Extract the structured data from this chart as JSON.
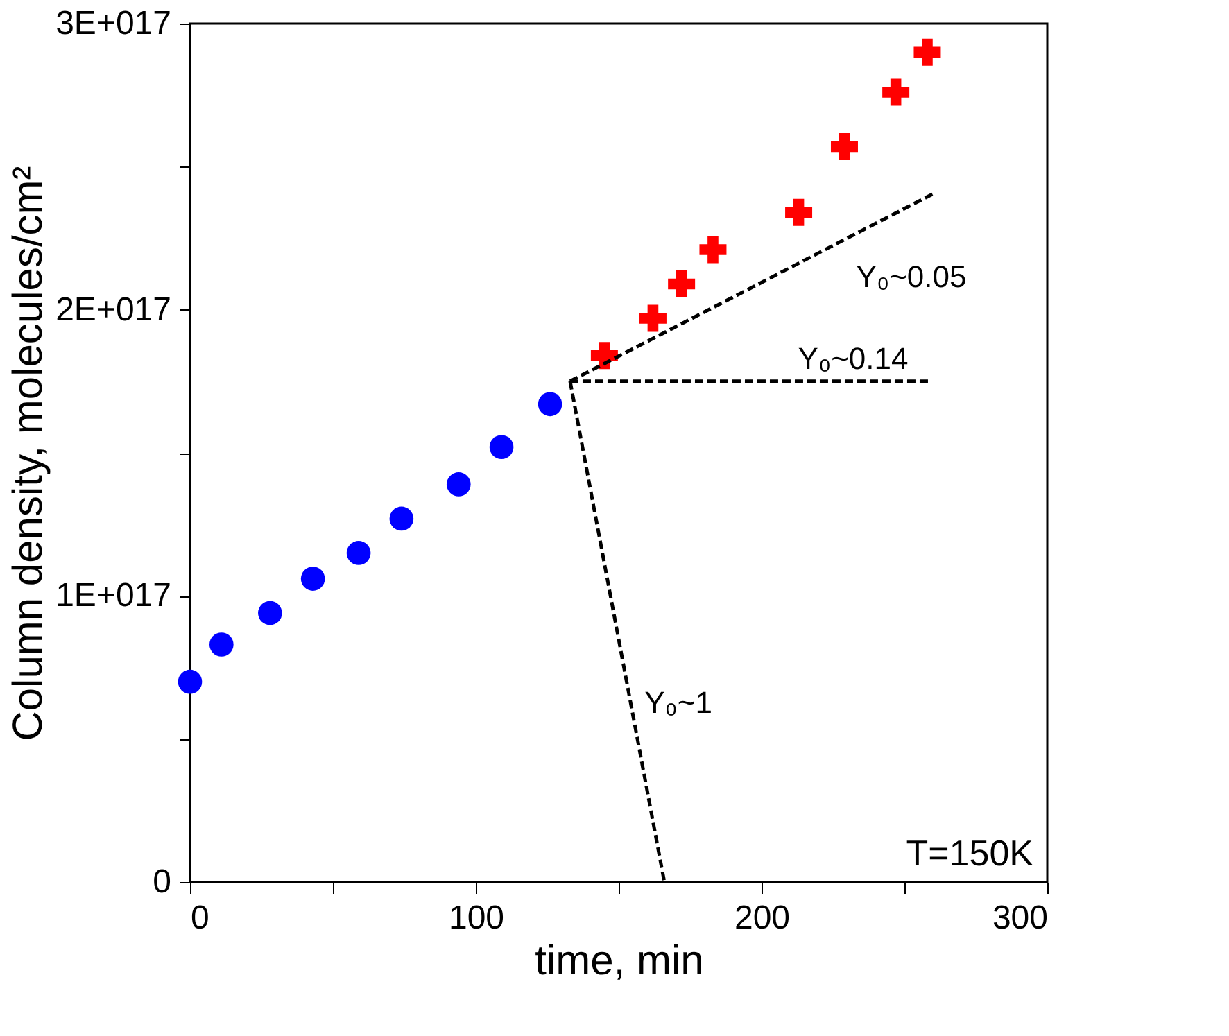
{
  "chart_data": {
    "type": "scatter",
    "xlabel": "time, min",
    "ylabel": "Column density, molecules/cm²",
    "xlim": [
      0,
      300
    ],
    "xticks": [
      0,
      {
        "value": 50,
        "label": null
      },
      100,
      {
        "value": 150,
        "label": null
      },
      200,
      {
        "value": 250,
        "label": null
      },
      300
    ],
    "ylim": [
      0,
      3e+17
    ],
    "yticks": [
      0,
      {
        "value": 5e+16,
        "label": null
      },
      {
        "value": 1e+17,
        "label": "1E+017"
      },
      {
        "value": 1.5e+17,
        "label": null
      },
      {
        "value": 2e+17,
        "label": "2E+017"
      },
      {
        "value": 2.5e+17,
        "label": null
      },
      {
        "value": 3e+17,
        "label": "3E+017"
      }
    ],
    "grid": false,
    "series": [
      {
        "marker": "circle",
        "color": "#0000ff",
        "x": [
          0,
          11,
          28,
          43,
          59,
          74,
          94,
          109,
          126
        ],
        "values": [
          7e+16,
          8.3e+16,
          9.4e+16,
          1.06e+17,
          1.15e+17,
          1.27e+17,
          1.39e+17,
          1.52e+17,
          1.67e+17
        ]
      },
      {
        "marker": "cross",
        "color": "#ff0000",
        "x": [
          145,
          162,
          172,
          183,
          213,
          229,
          247,
          258
        ],
        "values": [
          1.84e+17,
          1.97e+17,
          2.09e+17,
          2.21e+17,
          2.34e+17,
          2.57e+17,
          2.76e+17,
          2.9e+17
        ]
      },
      {
        "type": "line",
        "marker": "none",
        "line_style": "dashed",
        "color": "#000000",
        "x": [
          133,
          261
        ],
        "values": [
          1.75e+17,
          2.41e+17
        ]
      },
      {
        "type": "line",
        "marker": "none",
        "line_style": "dashed",
        "color": "#000000",
        "x": [
          133,
          259
        ],
        "values": [
          1.75e+17,
          1.75e+17
        ]
      },
      {
        "type": "line",
        "marker": "none",
        "line_style": "dashed",
        "color": "#000000",
        "x": [
          133,
          166
        ],
        "values": [
          1.75e+17,
          0
        ]
      }
    ],
    "annotations": [
      "Y₀~0.05",
      "Y₀~0.14",
      "Y₀~1",
      "T=150K"
    ]
  }
}
